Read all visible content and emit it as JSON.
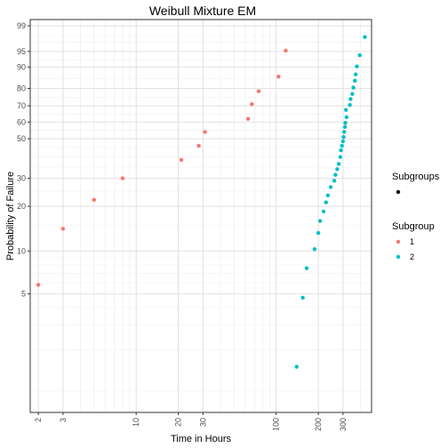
{
  "chart_data": {
    "type": "scatter",
    "title": "Weibull Mixture EM",
    "xlabel": "Time in Hours",
    "ylabel": "Probability of Failure",
    "x_scale": "log",
    "y_scale": "weibull-probability",
    "xlim": [
      1.75,
      480
    ],
    "ylim": [
      0.7,
      99.4
    ],
    "x_ticks": [
      {
        "value": 2,
        "label": "2"
      },
      {
        "value": 3,
        "label": "3"
      },
      {
        "value": 10,
        "label": "10"
      },
      {
        "value": 20,
        "label": "20"
      },
      {
        "value": 30,
        "label": "30"
      },
      {
        "value": 100,
        "label": "100"
      },
      {
        "value": 200,
        "label": "200"
      },
      {
        "value": 300,
        "label": "300"
      }
    ],
    "y_ticks": [
      {
        "value": 5,
        "label": "5"
      },
      {
        "value": 10,
        "label": "10"
      },
      {
        "value": 20,
        "label": "20"
      },
      {
        "value": 30,
        "label": "30"
      },
      {
        "value": 50,
        "label": "50"
      },
      {
        "value": 60,
        "label": "60"
      },
      {
        "value": 70,
        "label": "70"
      },
      {
        "value": 80,
        "label": "80"
      },
      {
        "value": 90,
        "label": "90"
      },
      {
        "value": 95,
        "label": "95"
      },
      {
        "value": 99,
        "label": "99"
      }
    ],
    "grid": true,
    "legend": {
      "placement": "right",
      "subgroups_title": "Subgroups",
      "subgroup_title": "Subgroup",
      "entries": [
        {
          "label": "1",
          "color": "#f8766d"
        },
        {
          "label": "2",
          "color": "#00bfc4"
        }
      ],
      "subgroups_color": "#000000"
    },
    "series": [
      {
        "name": "1",
        "color": "#f8766d",
        "points": [
          {
            "x": 2.0,
            "y": 5.8
          },
          {
            "x": 3.0,
            "y": 14.2
          },
          {
            "x": 5.0,
            "y": 22.0
          },
          {
            "x": 8.0,
            "y": 30.0
          },
          {
            "x": 21.0,
            "y": 38.5
          },
          {
            "x": 28.0,
            "y": 46.0
          },
          {
            "x": 31.0,
            "y": 54.0
          },
          {
            "x": 63.0,
            "y": 62.0
          },
          {
            "x": 67.0,
            "y": 71.0
          },
          {
            "x": 75.0,
            "y": 78.5
          },
          {
            "x": 104.0,
            "y": 86.0
          },
          {
            "x": 117.0,
            "y": 95.2
          }
        ]
      },
      {
        "name": "2",
        "color": "#00bfc4",
        "points": [
          {
            "x": 140,
            "y": 1.5
          },
          {
            "x": 155,
            "y": 4.7
          },
          {
            "x": 165,
            "y": 7.6
          },
          {
            "x": 188,
            "y": 10.3
          },
          {
            "x": 200,
            "y": 13.3
          },
          {
            "x": 206,
            "y": 16.0
          },
          {
            "x": 218,
            "y": 18.5
          },
          {
            "x": 227,
            "y": 21.2
          },
          {
            "x": 234,
            "y": 23.5
          },
          {
            "x": 245,
            "y": 26.5
          },
          {
            "x": 260,
            "y": 29.0
          },
          {
            "x": 265,
            "y": 31.5
          },
          {
            "x": 273,
            "y": 34.0
          },
          {
            "x": 280,
            "y": 36.5
          },
          {
            "x": 287,
            "y": 40.0
          },
          {
            "x": 290,
            "y": 43.5
          },
          {
            "x": 295,
            "y": 46.0
          },
          {
            "x": 300,
            "y": 48.5
          },
          {
            "x": 303,
            "y": 51.0
          },
          {
            "x": 306,
            "y": 54.0
          },
          {
            "x": 310,
            "y": 57.0
          },
          {
            "x": 312,
            "y": 59.5
          },
          {
            "x": 318,
            "y": 63.0
          },
          {
            "x": 315,
            "y": 67.5
          },
          {
            "x": 336,
            "y": 70.5
          },
          {
            "x": 340,
            "y": 74.0
          },
          {
            "x": 350,
            "y": 77.0
          },
          {
            "x": 356,
            "y": 80.5
          },
          {
            "x": 365,
            "y": 84.0
          },
          {
            "x": 370,
            "y": 87.0
          },
          {
            "x": 377,
            "y": 90.3
          },
          {
            "x": 395,
            "y": 94.0
          },
          {
            "x": 430,
            "y": 97.8
          }
        ]
      }
    ]
  }
}
